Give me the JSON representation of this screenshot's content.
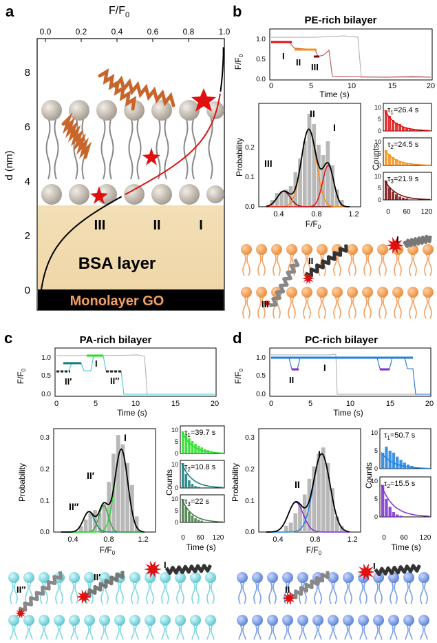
{
  "figure": {
    "panels": {
      "a": {
        "letter": "a",
        "x_axis_label": "F/F",
        "x_axis_sub": "0",
        "x_ticks": [
          "0.0",
          "0.2",
          "0.4",
          "0.6",
          "0.8",
          "1.0"
        ],
        "y_axis_label": "d (nm)",
        "y_ticks": [
          "0",
          "2",
          "4",
          "6",
          "8"
        ],
        "states": [
          "III",
          "II",
          "I"
        ],
        "bsa_label": "BSA layer",
        "go_label": "Monolayer GO"
      },
      "b": {
        "letter": "b",
        "title": "PE-rich bilayer",
        "trace_ylabel": "F/F",
        "trace_ysub": "0",
        "trace_yticks": [
          "0.0",
          "0.5",
          "1.0"
        ],
        "trace_xticks": [
          "0",
          "5",
          "10",
          "15",
          "20"
        ],
        "trace_xlabel": "Time (s)",
        "trace_states": [
          "I",
          "II",
          "III"
        ],
        "hist_ylabel": "Probability",
        "hist_yticks": [
          "0.0",
          "0.1",
          "0.2"
        ],
        "hist_xticks": [
          "0.4",
          "0.8",
          "1.2"
        ],
        "hist_xlabel": "F/F",
        "hist_xsub": "0",
        "hist_states": [
          "III",
          "II",
          "I"
        ],
        "counts_label": "Counts",
        "dwell_xlabel": "",
        "dwell_xticks": [
          "0",
          "60",
          "120"
        ],
        "dwell": [
          {
            "label": "τ",
            "sub": "1",
            "value": "=26.4 s",
            "yticks": [
              "0",
              "5",
              "10"
            ],
            "color": "#e01010"
          },
          {
            "label": "τ",
            "sub": "2",
            "value": "=24.5 s",
            "yticks": [
              "0",
              "5",
              "10"
            ],
            "color": "#f5901a"
          },
          {
            "label": "τ",
            "sub": "3",
            "value": "=21.9 s",
            "yticks": [
              "0",
              "5",
              "10"
            ],
            "color": "#7a0a0a"
          }
        ],
        "cartoon_states": [
          "III",
          "II",
          "I"
        ]
      },
      "c": {
        "letter": "c",
        "title": "PA-rich bilayer",
        "trace_ylabel": "F/F",
        "trace_ysub": "0",
        "trace_yticks": [
          "0.0",
          "0.5",
          "1.0"
        ],
        "trace_xticks": [
          "0",
          "5",
          "10",
          "15",
          "20"
        ],
        "trace_xlabel": "Time (s)",
        "trace_states": [
          "II′",
          "I",
          "II′′"
        ],
        "hist_ylabel": "Probability",
        "hist_yticks": [
          "0.0",
          "0.1",
          "0.2",
          "0.3"
        ],
        "hist_xticks": [
          "0.4",
          "0.8",
          "1.2"
        ],
        "hist_xlabel": "F/F",
        "hist_xsub": "0",
        "hist_states": [
          "II′′",
          "II′",
          "I"
        ],
        "counts_label": "Counts",
        "dwell_xlabel": "Time (s)",
        "dwell_xticks": [
          "0",
          "60",
          "120"
        ],
        "dwell": [
          {
            "label": "τ",
            "sub": "1",
            "value": "=39.7 s",
            "yticks": [
              "0",
              "5",
              "10"
            ],
            "color": "#22dd22"
          },
          {
            "label": "τ",
            "sub": "2",
            "value": "=10.8 s",
            "yticks": [
              "0",
              "10"
            ],
            "color": "#127a7a"
          },
          {
            "label": "τ",
            "sub": "3",
            "value": "=22 s",
            "yticks": [
              "0",
              "5",
              "10"
            ],
            "color": "#3e7a3e"
          }
        ],
        "cartoon_states": [
          "II′′",
          "II′",
          "I"
        ]
      },
      "d": {
        "letter": "d",
        "title": "PC-rich bilayer",
        "trace_ylabel": "F/F",
        "trace_ysub": "0",
        "trace_yticks": [
          "0.0",
          "0.5",
          "1.0"
        ],
        "trace_xticks": [
          "0",
          "5",
          "10",
          "15",
          "20"
        ],
        "trace_xlabel": "Time (s)",
        "trace_states": [
          "II",
          "I"
        ],
        "hist_ylabel": "Probability",
        "hist_yticks": [
          "0.0",
          "0.1",
          "0.2",
          "0.3"
        ],
        "hist_xticks": [
          "0.4",
          "0.8",
          "1.2"
        ],
        "hist_xlabel": "F/F",
        "hist_xsub": "0",
        "hist_states": [
          "II",
          "I"
        ],
        "counts_label": "Counts",
        "dwell_xlabel": "Time (s)",
        "dwell_xticks": [
          "0",
          "60",
          "120"
        ],
        "dwell": [
          {
            "label": "τ",
            "sub": "1",
            "value": "=50.7 s",
            "yticks": [
              "0",
              "5",
              "10"
            ],
            "color": "#1a80e0"
          },
          {
            "label": "τ",
            "sub": "2",
            "value": "=15.5 s",
            "yticks": [
              "0",
              "5",
              "10"
            ],
            "color": "#7a2ad0"
          }
        ],
        "cartoon_states": [
          "II",
          "I"
        ]
      }
    },
    "colors": {
      "pe_lipid": "#f5a060",
      "pa_lipid": "#80d8e0",
      "pc_lipid": "#7aa0e8",
      "gray_bar": "#b8b8b8"
    }
  }
}
